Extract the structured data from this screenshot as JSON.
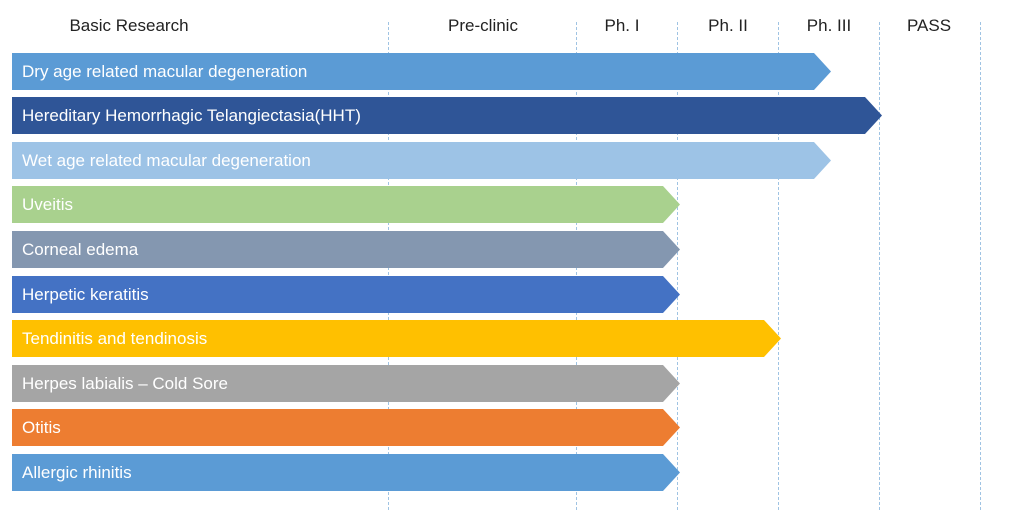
{
  "phases": [
    {
      "key": "basic",
      "label": "Basic Research"
    },
    {
      "key": "preclinic",
      "label": "Pre-clinic"
    },
    {
      "key": "ph1",
      "label": "Ph. I"
    },
    {
      "key": "ph2",
      "label": "Ph. II"
    },
    {
      "key": "ph3",
      "label": "Ph. III"
    },
    {
      "key": "pass",
      "label": "PASS"
    }
  ],
  "pipeline": [
    {
      "name": "Dry age related macular degeneration",
      "reaches": "ph3",
      "progress": "mid",
      "color": "#5b9bd5"
    },
    {
      "name": "Hereditary Hemorrhagic Telangiectasia(HHT)",
      "reaches": "ph3",
      "progress": "end",
      "color": "#2f5597"
    },
    {
      "name": "Wet age related macular degeneration",
      "reaches": "ph3",
      "progress": "mid",
      "color": "#9dc3e6"
    },
    {
      "name": "Uveitis",
      "reaches": "ph1",
      "progress": "end",
      "color": "#a9d18e"
    },
    {
      "name": "Corneal edema",
      "reaches": "ph1",
      "progress": "end",
      "color": "#8497b0"
    },
    {
      "name": "Herpetic keratitis",
      "reaches": "ph1",
      "progress": "end",
      "color": "#4472c4"
    },
    {
      "name": "Tendinitis and tendinosis",
      "reaches": "ph2",
      "progress": "end",
      "color": "#ffc000"
    },
    {
      "name": "Herpes labialis – Cold Sore",
      "reaches": "ph1",
      "progress": "end",
      "color": "#a5a5a5"
    },
    {
      "name": "Otitis",
      "reaches": "ph1",
      "progress": "end",
      "color": "#ed7d31"
    },
    {
      "name": "Allergic rhinitis",
      "reaches": "ph1",
      "progress": "end",
      "color": "#5b9bd5"
    }
  ]
}
